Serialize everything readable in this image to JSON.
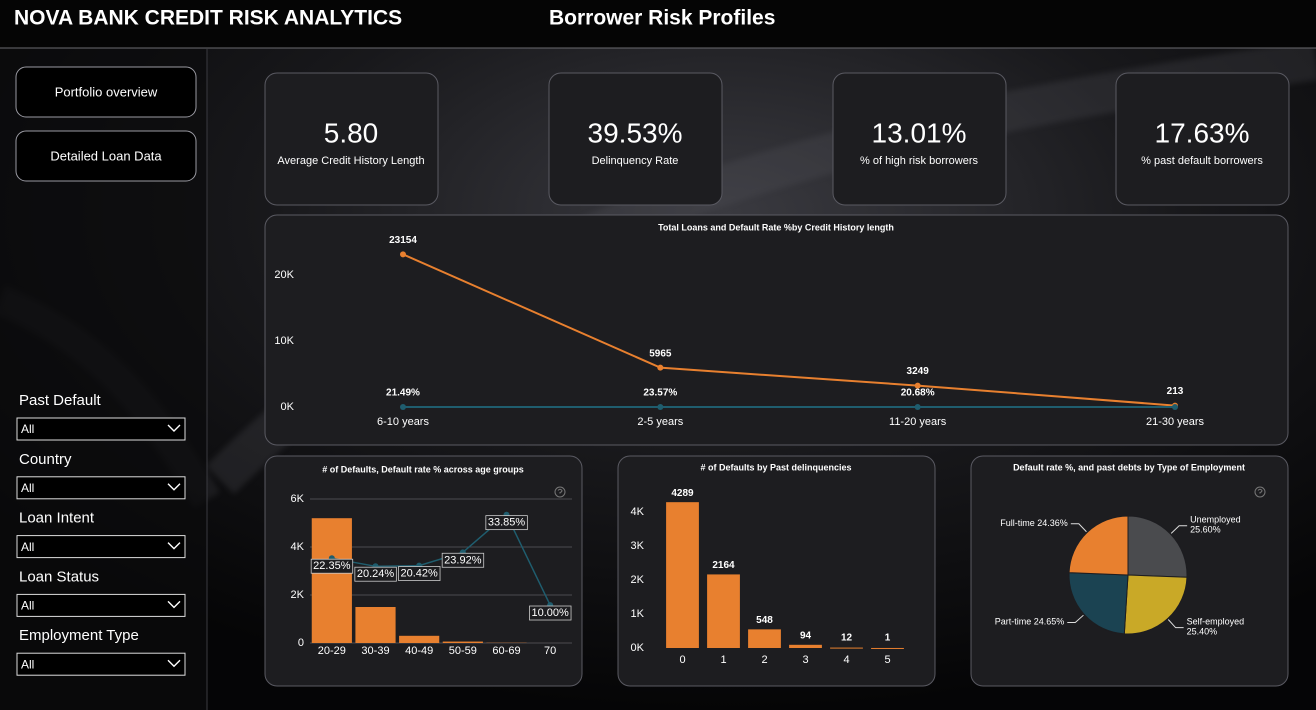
{
  "header": {
    "title": "NOVA BANK CREDIT RISK ANALYTICS",
    "subtitle": "Borrower Risk Profiles"
  },
  "nav": [
    "Portfolio overview",
    "Detailed Loan Data"
  ],
  "filters": [
    {
      "label": "Past Default",
      "value": "All"
    },
    {
      "label": "Country",
      "value": "All"
    },
    {
      "label": "Loan Intent",
      "value": "All"
    },
    {
      "label": "Loan Status",
      "value": "All"
    },
    {
      "label": "Employment Type",
      "value": "All"
    }
  ],
  "kpis": [
    {
      "value": "5.80",
      "label": "Average Credit History Length"
    },
    {
      "value": "39.53%",
      "label": "Delinquency Rate"
    },
    {
      "value": "13.01%",
      "label": "% of high risk borrowers"
    },
    {
      "value": "17.63%",
      "label": "% past default borrowers"
    }
  ],
  "chart_data": [
    {
      "type": "line",
      "title": "Total Loans and Default Rate %by Credit History length",
      "categories": [
        "6-10 years",
        "2-5 years",
        "11-20 years",
        "21-30 years"
      ],
      "series": [
        {
          "color": "#e8802f",
          "values": [
            23154,
            5965,
            3249,
            213
          ]
        },
        {
          "color": "#1f5d6e",
          "values": [
            0.2149,
            0.2357,
            0.2068,
            0.21
          ],
          "value_labels": [
            "21.49%",
            "23.57%",
            "20.68%",
            null
          ]
        }
      ],
      "ylim": [
        0,
        27000
      ],
      "yticks": [
        {
          "value": 0,
          "label": "0K"
        },
        {
          "value": 10000,
          "label": "10K"
        },
        {
          "value": 20000,
          "label": "20K"
        }
      ],
      "grid": false
    },
    {
      "type": "combo",
      "title": "# of Defaults, Default rate % across age groups",
      "categories": [
        "20-29",
        "30-39",
        "40-49",
        "50-59",
        "60-69",
        "70"
      ],
      "series": [
        {
          "color": "#e8802f",
          "values": [
            5200,
            1500,
            300,
            60,
            10,
            1
          ]
        },
        {
          "color": "#1f5d6e",
          "axis": "y2",
          "values": [
            22.35,
            20.24,
            20.42,
            23.92,
            33.85,
            10.0
          ],
          "value_labels": [
            "22.35%",
            "20.24%",
            "20.42%",
            "23.92%",
            "33.85%",
            "10.00%"
          ]
        }
      ],
      "ylim": [
        0,
        6000
      ],
      "yticks": [
        0,
        {
          "value": 2000,
          "label": "2K"
        },
        {
          "value": 4000,
          "label": "4K"
        },
        {
          "value": 6000,
          "label": "6K"
        }
      ],
      "y2lim": [
        0,
        38
      ],
      "grid": true
    },
    {
      "type": "bar",
      "title": "# of Defaults by Past delinquencies",
      "categories": [
        "0",
        "1",
        "2",
        "3",
        "4",
        "5"
      ],
      "values": [
        4289,
        2164,
        548,
        94,
        12,
        1
      ],
      "color": "#e8802f",
      "ylim": [
        0,
        4600
      ],
      "yticks": [
        {
          "value": 0,
          "label": "0K"
        },
        {
          "value": 1000,
          "label": "1K"
        },
        {
          "value": 2000,
          "label": "2K"
        },
        {
          "value": 3000,
          "label": "3K"
        },
        {
          "value": 4000,
          "label": "4K"
        }
      ],
      "grid": false
    },
    {
      "type": "pie",
      "title": "Default rate %, and past debts by Type of Employment",
      "categories": [
        "Unemployed",
        "Self-employed",
        "Part-time",
        "Full-time"
      ],
      "values": [
        25.6,
        25.4,
        24.65,
        24.36
      ],
      "value_labels": [
        "25.60%",
        "25.40%",
        "24.65%",
        "24.36%"
      ],
      "colors": [
        "#4a4b4e",
        "#c9a927",
        "#1b4352",
        "#e8802f"
      ]
    }
  ]
}
